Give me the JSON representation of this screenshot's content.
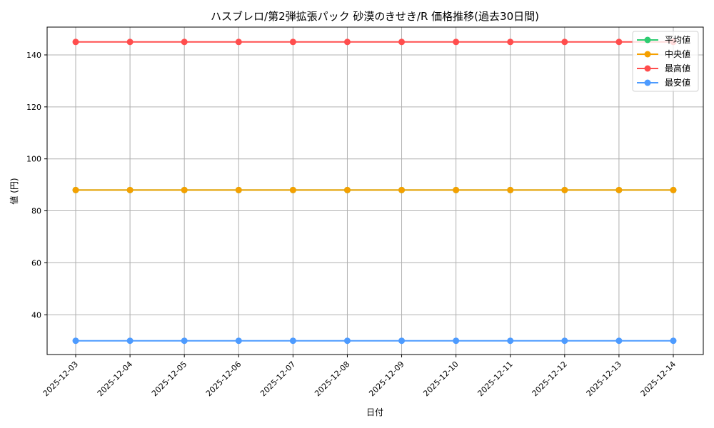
{
  "chart_data": {
    "type": "line",
    "title": "ハスブレロ/第2弾拡張パック 砂漠のきせき/R 価格推移(過去30日間)",
    "xlabel": "日付",
    "ylabel": "値 (円)",
    "x": [
      "2025-12-03",
      "2025-12-04",
      "2025-12-05",
      "2025-12-06",
      "2025-12-07",
      "2025-12-08",
      "2025-12-09",
      "2025-12-10",
      "2025-12-11",
      "2025-12-12",
      "2025-12-13",
      "2025-12-14"
    ],
    "ylim": [
      24.7,
      150.7
    ],
    "yticks": [
      40,
      60,
      80,
      100,
      120,
      140
    ],
    "grid": true,
    "legend_position": "upper right",
    "series": [
      {
        "name": "平均値",
        "color": "#2ecc71",
        "values": [
          88,
          88,
          88,
          88,
          88,
          88,
          88,
          88,
          88,
          88,
          88,
          88
        ]
      },
      {
        "name": "中央値",
        "color": "#f5a000",
        "values": [
          88,
          88,
          88,
          88,
          88,
          88,
          88,
          88,
          88,
          88,
          88,
          88
        ]
      },
      {
        "name": "最高値",
        "color": "#ff4d4d",
        "values": [
          145,
          145,
          145,
          145,
          145,
          145,
          145,
          145,
          145,
          145,
          145,
          145
        ]
      },
      {
        "name": "最安値",
        "color": "#4d9bff",
        "values": [
          30,
          30,
          30,
          30,
          30,
          30,
          30,
          30,
          30,
          30,
          30,
          30
        ]
      }
    ]
  }
}
